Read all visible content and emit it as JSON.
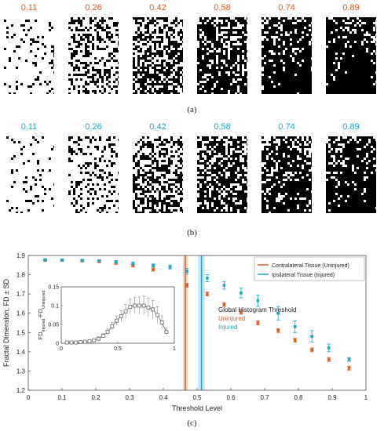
{
  "panel_a": {
    "label": "(a)",
    "thumbnails": [
      {
        "label": "0.11",
        "density": 0.12,
        "label_color": "#e05a1b"
      },
      {
        "label": "0.26",
        "density": 0.42,
        "label_color": "#e05a1b"
      },
      {
        "label": "0.42",
        "density": 0.62,
        "label_color": "#e05a1b"
      },
      {
        "label": "0.58",
        "density": 0.8,
        "label_color": "#e05a1b"
      },
      {
        "label": "0.74",
        "density": 0.92,
        "label_color": "#e05a1b"
      },
      {
        "label": "0.89",
        "density": 0.96,
        "label_color": "#e05a1b"
      }
    ]
  },
  "panel_b": {
    "label": "(b)",
    "thumbnails": [
      {
        "label": "0.11",
        "density": 0.1,
        "label_color": "#1aa7c6"
      },
      {
        "label": "0.26",
        "density": 0.3,
        "label_color": "#1aa7c6"
      },
      {
        "label": "0.42",
        "density": 0.55,
        "label_color": "#1aa7c6"
      },
      {
        "label": "0.58",
        "density": 0.7,
        "label_color": "#1aa7c6"
      },
      {
        "label": "0.74",
        "density": 0.85,
        "label_color": "#1aa7c6"
      },
      {
        "label": "0.89",
        "density": 0.93,
        "label_color": "#1aa7c6"
      }
    ]
  },
  "panel_c": {
    "label": "(c)"
  },
  "chart_data": {
    "type": "scatter",
    "xlabel": "Threshold Level",
    "ylabel": "Fractal Dimension, FD ± SD",
    "xlim": [
      0,
      1
    ],
    "ylim": [
      1.2,
      1.9
    ],
    "xticks": [
      "0",
      "0.1",
      "0.2",
      "0.3",
      "0.4",
      "0.5",
      "0.6",
      "0.7",
      "0.8",
      "0.9",
      "1"
    ],
    "yticks": [
      "1.2",
      "1.3",
      "1.4",
      "1.5",
      "1.6",
      "1.7",
      "1.8",
      "1.9"
    ],
    "legend": {
      "placement": "top-right",
      "entries": [
        {
          "label": "Contralateral Tissue (Uninjured)",
          "color": "#e05a1b"
        },
        {
          "label": "Ipsilateral Tissue (Injured)",
          "color": "#1aa7c6"
        }
      ]
    },
    "threshold_lines": [
      {
        "x": 0.465,
        "color": "#e05a1b",
        "band": [
          0.458,
          0.472
        ]
      },
      {
        "x": 0.513,
        "color": "#1aa7c6",
        "band": [
          0.503,
          0.523
        ]
      }
    ],
    "annotation": {
      "title": "Global Histogram Threshold",
      "lines": [
        {
          "text": "Uninjured",
          "color": "#e05a1b"
        },
        {
          "text": "Injured",
          "color": "#1aa7c6"
        }
      ]
    },
    "series": [
      {
        "name": "Contralateral Tissue (Uninjured)",
        "color": "#e05a1b",
        "x": [
          0.05,
          0.1,
          0.16,
          0.21,
          0.26,
          0.31,
          0.37,
          0.47,
          0.53,
          0.58,
          0.63,
          0.68,
          0.74,
          0.79,
          0.84,
          0.89,
          0.95
        ],
        "y": [
          1.875,
          1.875,
          1.872,
          1.868,
          1.86,
          1.848,
          1.827,
          1.745,
          1.7,
          1.645,
          1.605,
          1.55,
          1.51,
          1.46,
          1.41,
          1.36,
          1.315
        ],
        "err": [
          0.004,
          0.004,
          0.004,
          0.005,
          0.006,
          0.007,
          0.008,
          0.01,
          0.01,
          0.01,
          0.01,
          0.01,
          0.01,
          0.01,
          0.01,
          0.01,
          0.01
        ]
      },
      {
        "name": "Ipsilateral Tissue (Injured)",
        "color": "#1aa7c6",
        "x": [
          0.05,
          0.1,
          0.16,
          0.21,
          0.26,
          0.31,
          0.37,
          0.42,
          0.47,
          0.53,
          0.58,
          0.63,
          0.68,
          0.74,
          0.79,
          0.84,
          0.89,
          0.95
        ],
        "y": [
          1.878,
          1.877,
          1.875,
          1.872,
          1.867,
          1.858,
          1.848,
          1.84,
          1.818,
          1.782,
          1.745,
          1.705,
          1.665,
          1.6,
          1.53,
          1.48,
          1.42,
          1.36
        ],
        "err": [
          0.004,
          0.004,
          0.004,
          0.005,
          0.006,
          0.007,
          0.008,
          0.01,
          0.015,
          0.018,
          0.02,
          0.025,
          0.03,
          0.035,
          0.03,
          0.03,
          0.02,
          0.01
        ]
      }
    ],
    "inset": {
      "type": "line",
      "ylabel_main": "FD",
      "ylabel_sub1": "Injured",
      "ylabel_mid": "-FD",
      "ylabel_sub2": "Uninjured",
      "xlim": [
        0,
        1
      ],
      "ylim": [
        0,
        0.15
      ],
      "xticks": [
        "0",
        "0.5",
        "1"
      ],
      "yticks": [
        "0",
        "0.05",
        "0.1",
        "0.15"
      ],
      "x": [
        0.05,
        0.09,
        0.13,
        0.17,
        0.21,
        0.25,
        0.29,
        0.33,
        0.37,
        0.41,
        0.45,
        0.49,
        0.53,
        0.57,
        0.61,
        0.65,
        0.69,
        0.73,
        0.77,
        0.81,
        0.85,
        0.89,
        0.93
      ],
      "y": [
        0.002,
        0.002,
        0.002,
        0.003,
        0.004,
        0.005,
        0.008,
        0.012,
        0.02,
        0.03,
        0.045,
        0.06,
        0.072,
        0.085,
        0.097,
        0.1,
        0.1,
        0.1,
        0.095,
        0.09,
        0.075,
        0.055,
        0.03
      ],
      "err": [
        0.001,
        0.001,
        0.001,
        0.001,
        0.002,
        0.003,
        0.004,
        0.005,
        0.006,
        0.008,
        0.01,
        0.012,
        0.015,
        0.018,
        0.02,
        0.022,
        0.023,
        0.025,
        0.025,
        0.024,
        0.022,
        0.018,
        0.01
      ]
    }
  }
}
